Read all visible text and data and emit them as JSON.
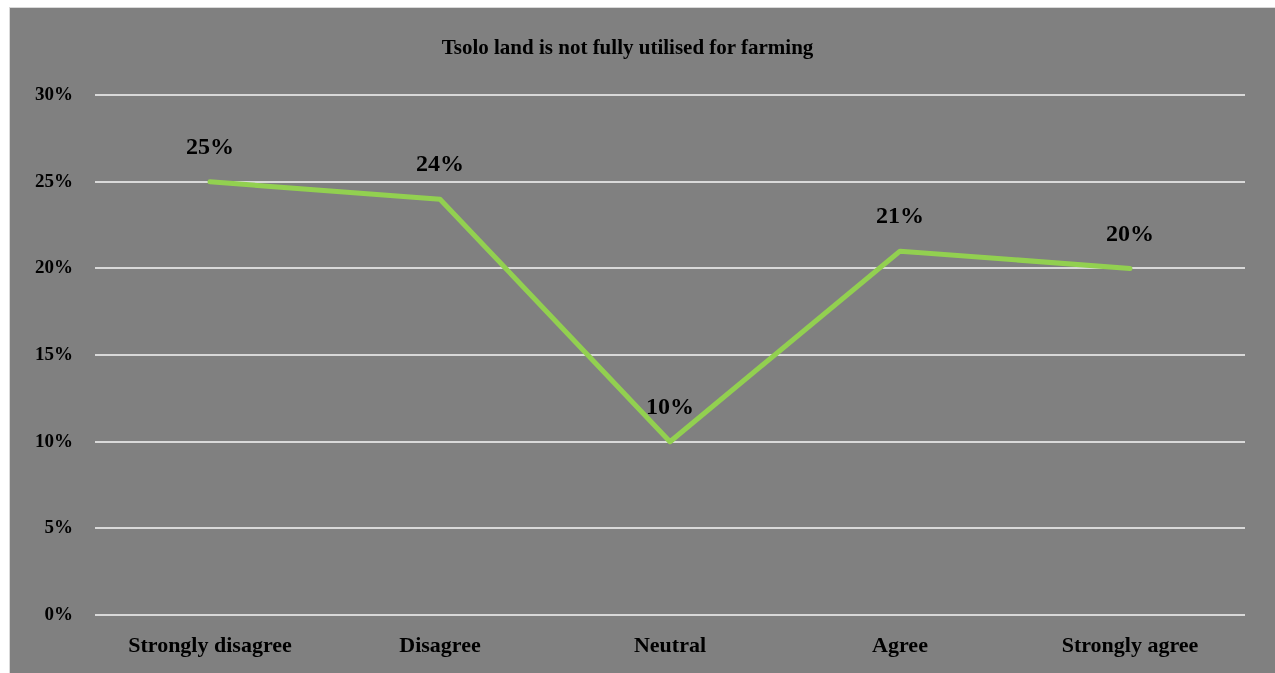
{
  "chart_data": {
    "type": "line",
    "title": "Tsolo land is not fully utilised for farming",
    "categories": [
      "Strongly disagree",
      "Disagree",
      "Neutral",
      "Agree",
      "Strongly agree"
    ],
    "values": [
      25,
      24,
      10,
      21,
      20
    ],
    "color": "#92d050",
    "value_labels": [
      "25%",
      "24%",
      "10%",
      "21%",
      "20%"
    ],
    "ylim": [
      0,
      30
    ],
    "yticks": [
      {
        "value": 0,
        "label": "0%"
      },
      {
        "value": 5,
        "label": "5%"
      },
      {
        "value": 10,
        "label": "10%"
      },
      {
        "value": 15,
        "label": "15%"
      },
      {
        "value": 20,
        "label": "20%"
      },
      {
        "value": 25,
        "label": "25%"
      },
      {
        "value": 30,
        "label": "30%"
      }
    ],
    "grid": "y",
    "legend": false,
    "marker": "none"
  }
}
